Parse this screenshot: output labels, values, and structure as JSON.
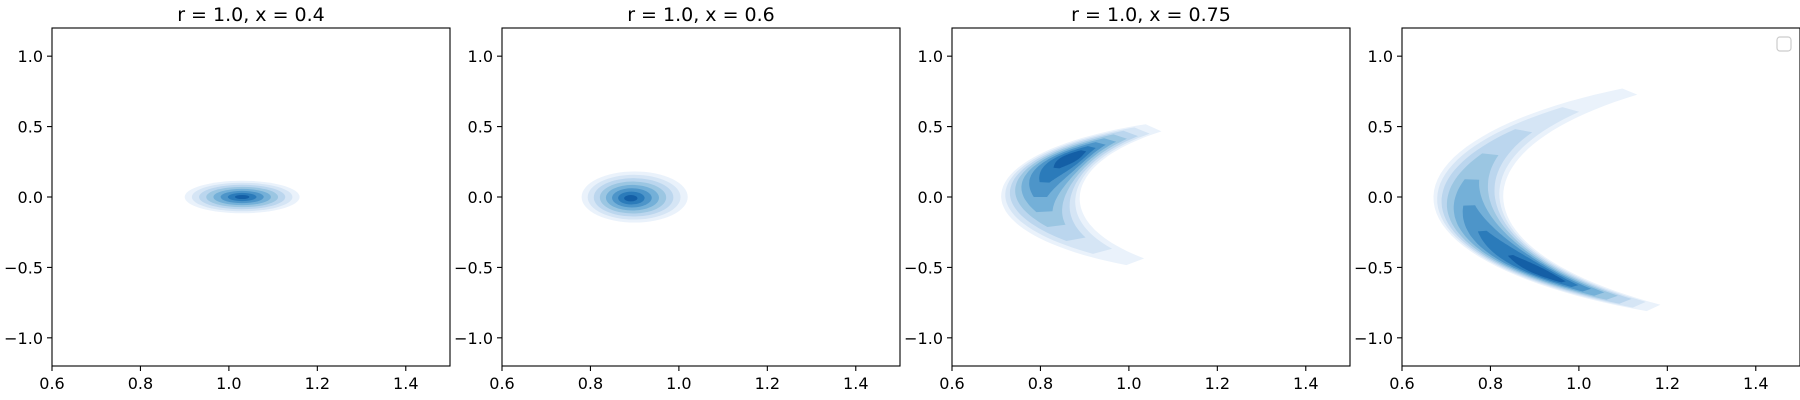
{
  "chart_data": [
    {
      "type": "contour",
      "title": "r = 1.0, x = 0.4",
      "xlim": [
        0.6,
        1.5
      ],
      "ylim": [
        -1.2,
        1.2
      ],
      "xticks": [
        0.6,
        0.8,
        1.0,
        1.2,
        1.4
      ],
      "yticks": [
        -1.0,
        -0.5,
        0.0,
        0.5,
        1.0
      ],
      "colormap": "Blues",
      "levels": 8,
      "shape": "blob",
      "center": [
        1.03,
        0.0
      ],
      "radius": [
        0.13,
        0.21
      ],
      "peak": [
        1.03,
        0.0
      ]
    },
    {
      "type": "contour",
      "title": "r = 1.0, x = 0.6",
      "xlim": [
        0.6,
        1.5
      ],
      "ylim": [
        -1.2,
        1.2
      ],
      "xticks": [
        0.6,
        0.8,
        1.0,
        1.2,
        1.4
      ],
      "yticks": [
        -1.0,
        -0.5,
        0.0,
        0.5,
        1.0
      ],
      "colormap": "Blues",
      "levels": 8,
      "shape": "blob",
      "center": [
        0.9,
        0.0
      ],
      "radius": [
        0.12,
        0.33
      ],
      "peak": [
        0.89,
        -0.01
      ]
    },
    {
      "type": "contour",
      "title": "r = 1.0, x = 0.75",
      "xlim": [
        0.6,
        1.5
      ],
      "ylim": [
        -1.2,
        1.2
      ],
      "xticks": [
        0.6,
        0.8,
        1.0,
        1.2,
        1.4
      ],
      "yticks": [
        -1.0,
        -0.5,
        0.0,
        0.5,
        1.0
      ],
      "colormap": "Blues",
      "levels": 8,
      "shape": "crescent",
      "arc_center": [
        1.4,
        0.0
      ],
      "arc_radius": 0.6,
      "arc_angle_range_deg": [
        125,
        230
      ],
      "arc_peak_deg": 150,
      "arc_width": 0.085
    },
    {
      "type": "contour",
      "title": "",
      "xlim": [
        0.6,
        1.5
      ],
      "ylim": [
        -1.2,
        1.2
      ],
      "xticks": [
        0.6,
        0.8,
        1.0,
        1.2,
        1.4
      ],
      "yticks": [
        -1.0,
        -0.5,
        0.0,
        0.5,
        1.0
      ],
      "colormap": "Blues",
      "levels": 8,
      "shape": "crescent",
      "arc_center": [
        1.7,
        0.0
      ],
      "arc_radius": 0.95,
      "arc_angle_range_deg": [
        128,
        236
      ],
      "arc_peak_deg": 217,
      "arc_width": 0.075,
      "legend": "upper right (empty)"
    }
  ]
}
